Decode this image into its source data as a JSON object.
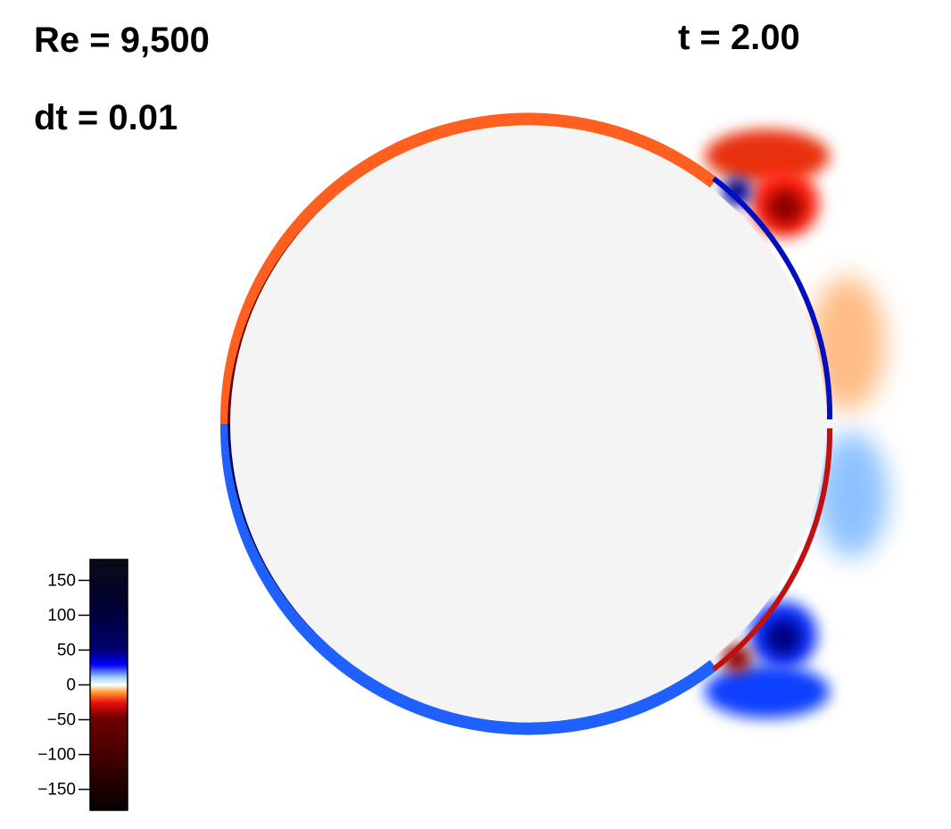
{
  "annotations": {
    "reynolds": "Re = 9,500",
    "time": "t = 2.00",
    "timestep": "dt = 0.01"
  },
  "colorbar": {
    "lim": [
      -180,
      180
    ],
    "ticks": [
      150,
      100,
      50,
      0,
      {
        "value": -50,
        "label": "−50"
      },
      {
        "value": -100,
        "label": "−100"
      },
      {
        "value": -150,
        "label": "−150"
      }
    ]
  }
}
